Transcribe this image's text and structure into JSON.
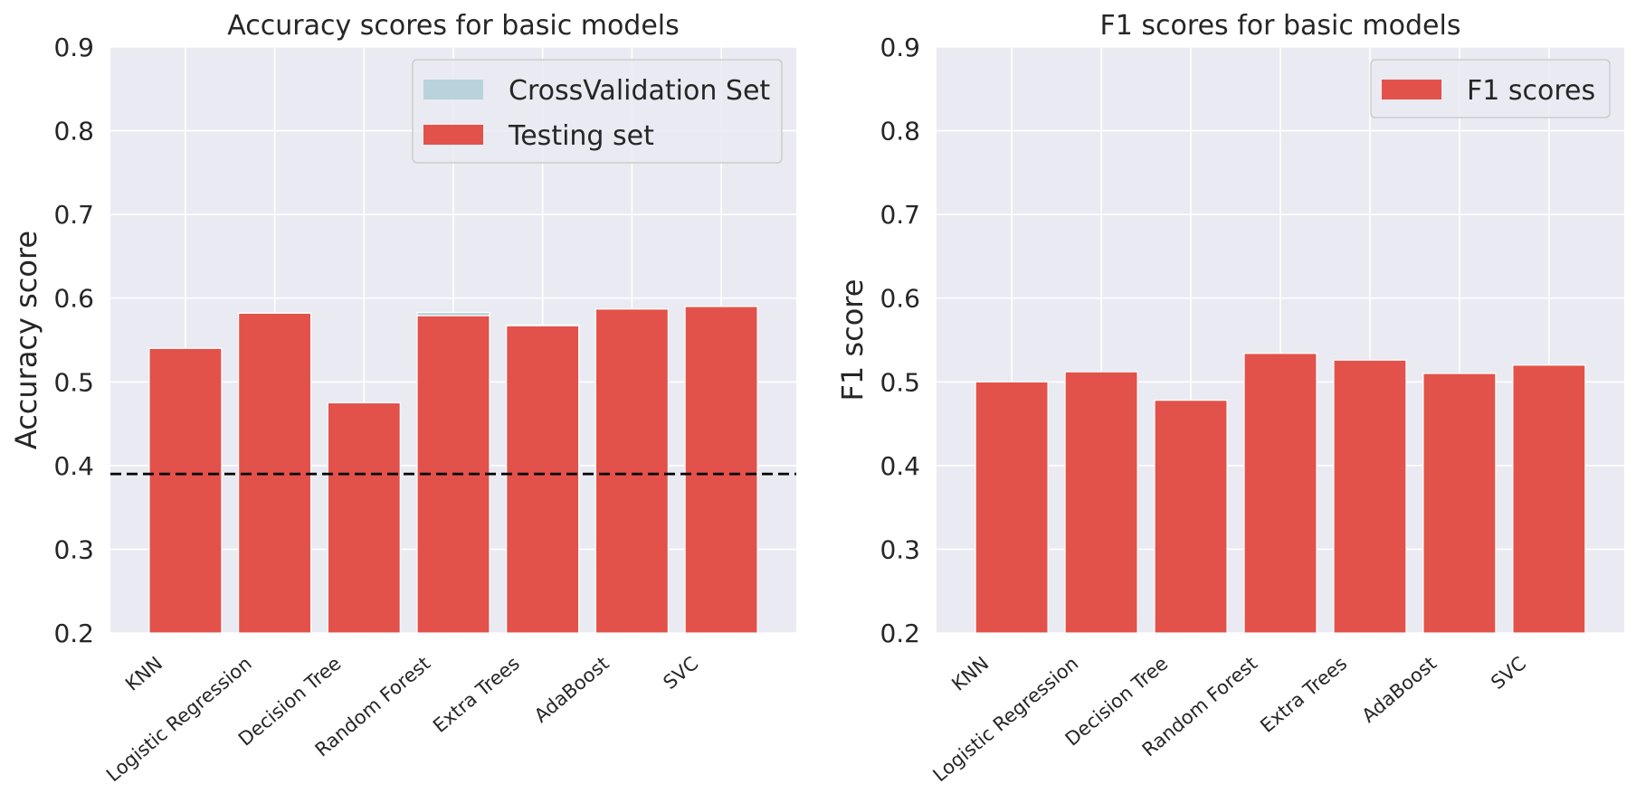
{
  "chart_data": [
    {
      "type": "bar",
      "title": "Accuracy scores for basic models",
      "xlabel": "",
      "ylabel": "Accuracy score",
      "ylim": [
        0.2,
        0.9
      ],
      "yticks": [
        "0.2",
        "0.3",
        "0.4",
        "0.5",
        "0.6",
        "0.7",
        "0.8",
        "0.9"
      ],
      "grid": true,
      "legend_position": "top-right",
      "categories": [
        "KNN",
        "Logistic Regression",
        "Decision Tree",
        "Random Forest",
        "Extra Trees",
        "AdaBoost",
        "SVC"
      ],
      "series": [
        {
          "name": "CrossValidation Set",
          "color": "#b8d3dc",
          "values": [
            0.54,
            0.582,
            0.475,
            0.583,
            0.568,
            0.587,
            0.59
          ]
        },
        {
          "name": "Testing set",
          "color": "#e2524a",
          "values": [
            0.54,
            0.582,
            0.475,
            0.579,
            0.567,
            0.587,
            0.59
          ]
        }
      ],
      "reference_line": {
        "y": 0.39,
        "style": "dashed",
        "color": "#000000"
      }
    },
    {
      "type": "bar",
      "title": "F1 scores for basic models",
      "xlabel": "",
      "ylabel": "F1 score",
      "ylim": [
        0.2,
        0.9
      ],
      "yticks": [
        "0.2",
        "0.3",
        "0.4",
        "0.5",
        "0.6",
        "0.7",
        "0.8",
        "0.9"
      ],
      "grid": true,
      "legend_position": "top-right",
      "categories": [
        "KNN",
        "Logistic Regression",
        "Decision Tree",
        "Random Forest",
        "Extra Trees",
        "AdaBoost",
        "SVC"
      ],
      "series": [
        {
          "name": "F1 scores",
          "color": "#e2524a",
          "values": [
            0.5,
            0.512,
            0.478,
            0.534,
            0.526,
            0.51,
            0.52
          ]
        }
      ]
    }
  ],
  "style": {
    "plot_background": "#eaeaf2",
    "grid_color": "#ffffff",
    "text_color": "#262626"
  }
}
